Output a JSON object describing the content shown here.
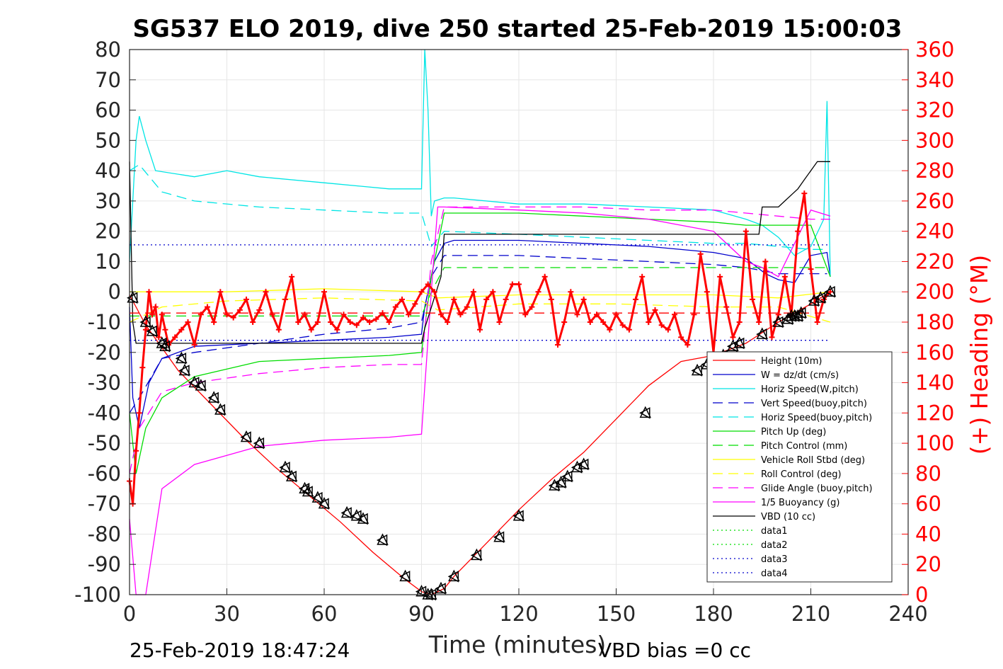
{
  "chart_data": {
    "type": "line",
    "title": "SG537 ELO 2019, dive 250 started 25-Feb-2019 15:00:03",
    "xlabel": "Time (minutes)",
    "ylabel_right": "(+) Heading (°M)",
    "xlim": [
      0,
      240
    ],
    "ylim": [
      -100,
      80
    ],
    "ylim_right": [
      0,
      360
    ],
    "x_ticks": [
      "0",
      "30",
      "60",
      "90",
      "120",
      "150",
      "180",
      "210",
      "240"
    ],
    "y_ticks": [
      "80",
      "70",
      "60",
      "50",
      "40",
      "30",
      "20",
      "10",
      "0",
      "-10",
      "-20",
      "-30",
      "-40",
      "-50",
      "-60",
      "-70",
      "-80",
      "-90",
      "-100"
    ],
    "y_ticks_right": [
      "360",
      "340",
      "320",
      "300",
      "280",
      "260",
      "240",
      "220",
      "200",
      "180",
      "160",
      "140",
      "120",
      "100",
      "80",
      "60",
      "40",
      "20",
      "0"
    ],
    "grid": true,
    "legend_position": "bottom-right",
    "footer_left": "25-Feb-2019 18:47:24",
    "footer_right": "VBD bias =0 cc",
    "series": [
      {
        "name": "Height (10m)",
        "color": "#ff0000",
        "style": "solid",
        "x": [
          0,
          5,
          15,
          25,
          35,
          45,
          55,
          65,
          75,
          85,
          90,
          93,
          97,
          100,
          110,
          120,
          130,
          140,
          150,
          160,
          170,
          180,
          190,
          200,
          210,
          216
        ],
        "y": [
          -1,
          -11,
          -26,
          -37,
          -48,
          -58,
          -67,
          -76,
          -86,
          -95,
          -99,
          -100,
          -98,
          -94,
          -83,
          -72,
          -62,
          -53,
          -42,
          -31,
          -23,
          -21,
          -17,
          -10,
          -4,
          0
        ]
      },
      {
        "name": "W = dz/dt (cm/s)",
        "color": "#0000cc",
        "style": "solid",
        "x": [
          0,
          1,
          3,
          6,
          10,
          20,
          40,
          60,
          80,
          90,
          91,
          94,
          97,
          100,
          120,
          140,
          160,
          180,
          190,
          196,
          200,
          205,
          210,
          215,
          216
        ],
        "y": [
          -5,
          -35,
          -45,
          -30,
          -22,
          -18,
          -17,
          -16,
          -15,
          -14,
          -5,
          10,
          16,
          17,
          17,
          16,
          15,
          13,
          11,
          6,
          4,
          3,
          12,
          13,
          5
        ]
      },
      {
        "name": "Horiz Speed(W,pitch)",
        "color": "#00e5e5",
        "style": "solid",
        "x": [
          0,
          2,
          3,
          5,
          8,
          20,
          30,
          40,
          60,
          80,
          90,
          91,
          92,
          93,
          94,
          97,
          100,
          120,
          140,
          160,
          180,
          190,
          195,
          200,
          205,
          210,
          214,
          215,
          216
        ],
        "y": [
          10,
          50,
          58,
          50,
          40,
          38,
          40,
          38,
          36,
          34,
          34,
          80,
          60,
          25,
          30,
          31,
          31,
          29,
          29,
          28,
          27,
          24,
          22,
          18,
          12,
          15,
          24,
          63,
          5
        ]
      },
      {
        "name": "Vert Speed(buoy,pitch)",
        "color": "#0000cc",
        "style": "dash",
        "x": [
          0,
          3,
          10,
          20,
          40,
          60,
          80,
          90,
          93,
          97,
          120,
          140,
          160,
          180,
          190,
          200,
          210,
          215
        ],
        "y": [
          -40,
          -35,
          -22,
          -20,
          -17,
          -14,
          -12,
          -10,
          5,
          12,
          12,
          11,
          10,
          9,
          8,
          6,
          6,
          6
        ]
      },
      {
        "name": "Horiz Speed(buoy,pitch)",
        "color": "#00e5e5",
        "style": "dash",
        "x": [
          0,
          3,
          10,
          20,
          40,
          60,
          80,
          90,
          93,
          97,
          120,
          140,
          160,
          180,
          190,
          200,
          210,
          215
        ],
        "y": [
          40,
          42,
          33,
          30,
          28,
          27,
          26,
          26,
          15,
          20,
          19,
          18,
          17,
          16,
          16,
          15,
          14,
          14
        ]
      },
      {
        "name": "Pitch Up (deg)",
        "color": "#00dd00",
        "style": "solid",
        "x": [
          0,
          2,
          5,
          10,
          20,
          40,
          60,
          80,
          90,
          93,
          97,
          120,
          140,
          160,
          180,
          190,
          200,
          210,
          216
        ],
        "y": [
          -40,
          -60,
          -45,
          -35,
          -28,
          -23,
          -22,
          -21,
          -20,
          5,
          26,
          26,
          25,
          24,
          23,
          22,
          22,
          22,
          5
        ]
      },
      {
        "name": "Pitch Control (mm)",
        "color": "#00dd00",
        "style": "dash",
        "x": [
          0,
          10,
          40,
          90,
          93,
          97,
          150,
          190,
          210,
          216
        ],
        "y": [
          -8,
          -8,
          -8,
          -8,
          0,
          8,
          8,
          8,
          8,
          8
        ]
      },
      {
        "name": "Vehicle Roll Stbd (deg)",
        "color": "#ffff00",
        "style": "solid",
        "x": [
          0,
          10,
          30,
          60,
          90,
          95,
          120,
          150,
          180,
          200,
          216
        ],
        "y": [
          0,
          0,
          0,
          1,
          0,
          -2,
          -1,
          -1,
          -1,
          -2,
          0
        ]
      },
      {
        "name": "Roll Control (deg)",
        "color": "#ffff00",
        "style": "dash",
        "x": [
          0,
          10,
          30,
          60,
          90,
          95,
          120,
          150,
          180,
          200,
          216
        ],
        "y": [
          -10,
          -5,
          -3,
          -2,
          -3,
          -6,
          -4,
          -4,
          -5,
          -5,
          -10
        ]
      },
      {
        "name": "Glide Angle (buoy,pitch)",
        "color": "#ff00ff",
        "style": "dash",
        "x": [
          0,
          3,
          10,
          20,
          40,
          60,
          80,
          90,
          93,
          97,
          120,
          140,
          160,
          180,
          190,
          200,
          210,
          216
        ],
        "y": [
          -60,
          -45,
          -33,
          -30,
          -27,
          -25,
          -24,
          -24,
          10,
          28,
          28,
          28,
          27,
          27,
          26,
          25,
          24,
          24
        ]
      },
      {
        "name": "1/5 Buoyancy (g)",
        "color": "#ff00ff",
        "style": "solid",
        "x": [
          0,
          2,
          5,
          10,
          20,
          30,
          40,
          60,
          80,
          90,
          93,
          95,
          97,
          120,
          140,
          160,
          180,
          185,
          190,
          195,
          200,
          210,
          216
        ],
        "y": [
          -75,
          -100,
          -100,
          -65,
          -57,
          -54,
          -51,
          -49,
          -48,
          -47,
          0,
          28,
          28,
          27,
          26,
          24,
          20,
          15,
          10,
          8,
          5,
          27,
          25
        ]
      },
      {
        "name": "VBD (10 cc)",
        "color": "#000000",
        "style": "solid",
        "x": [
          0,
          1,
          2,
          90,
          91,
          96,
          97,
          190,
          194,
          195,
          200,
          202,
          204,
          206,
          208,
          210,
          212,
          216
        ],
        "y": [
          43,
          -10,
          -17,
          -17,
          -12,
          5,
          19,
          19,
          19,
          28,
          28,
          30,
          32,
          34,
          37,
          40,
          43,
          43
        ]
      },
      {
        "name": "data1",
        "color": "#00dd00",
        "style": "dot",
        "x": [],
        "y": []
      },
      {
        "name": "data2",
        "color": "#00dd00",
        "style": "dot",
        "x": [],
        "y": []
      },
      {
        "name": "data3",
        "color": "#0000cc",
        "style": "dot",
        "x": [
          0,
          216
        ],
        "y": [
          15.5,
          15.5
        ]
      },
      {
        "name": "data4",
        "color": "#0000cc",
        "style": "dot",
        "x": [
          0,
          216
        ],
        "y": [
          -16,
          -16
        ]
      },
      {
        "name": "",
        "color": "#ff0000",
        "style": "dash",
        "x": [
          0,
          216
        ],
        "y": [
          -7,
          -7
        ]
      }
    ],
    "heading": {
      "color": "#ff0000",
      "axis": "right",
      "x": [
        0,
        1,
        2,
        3,
        4,
        5,
        6,
        7,
        8,
        9,
        10,
        11,
        12,
        14,
        16,
        18,
        20,
        22,
        24,
        26,
        28,
        30,
        32,
        34,
        36,
        38,
        40,
        42,
        44,
        46,
        48,
        50,
        52,
        54,
        56,
        58,
        60,
        62,
        64,
        66,
        68,
        70,
        72,
        74,
        76,
        78,
        80,
        82,
        84,
        86,
        88,
        90,
        92,
        94,
        96,
        98,
        100,
        102,
        104,
        106,
        108,
        110,
        112,
        114,
        116,
        118,
        120,
        122,
        124,
        126,
        128,
        130,
        132,
        134,
        136,
        138,
        140,
        142,
        144,
        146,
        148,
        150,
        152,
        154,
        156,
        158,
        160,
        162,
        164,
        166,
        168,
        170,
        172,
        174,
        176,
        178,
        180,
        182,
        184,
        186,
        188,
        190,
        192,
        194,
        196,
        198,
        200,
        202,
        204,
        206,
        208,
        210,
        212,
        214,
        216
      ],
      "y": [
        75,
        60,
        95,
        120,
        150,
        175,
        200,
        185,
        190,
        170,
        185,
        175,
        165,
        170,
        175,
        180,
        165,
        185,
        190,
        180,
        200,
        185,
        183,
        188,
        195,
        180,
        188,
        200,
        185,
        175,
        195,
        210,
        180,
        185,
        175,
        180,
        200,
        180,
        175,
        185,
        180,
        178,
        183,
        180,
        182,
        186,
        180,
        190,
        195,
        185,
        192,
        200,
        205,
        200,
        185,
        180,
        195,
        185,
        190,
        200,
        175,
        195,
        200,
        180,
        195,
        205,
        205,
        185,
        190,
        200,
        210,
        195,
        165,
        180,
        200,
        185,
        195,
        180,
        185,
        180,
        175,
        185,
        178,
        175,
        195,
        210,
        180,
        188,
        178,
        175,
        185,
        170,
        165,
        185,
        225,
        200,
        160,
        210,
        190,
        170,
        180,
        240,
        195,
        180,
        220,
        170,
        185,
        210,
        185,
        240,
        265,
        215,
        180,
        195,
        200
      ]
    },
    "markers": {
      "x": [
        1,
        5,
        7,
        10,
        11,
        16,
        17,
        20,
        22,
        26,
        28,
        36,
        40,
        48,
        50,
        54,
        55,
        58,
        60,
        67,
        70,
        72,
        78,
        85,
        90,
        92,
        93,
        96,
        100,
        107,
        114,
        120,
        131,
        133,
        135,
        138,
        140,
        159,
        175,
        178,
        183,
        186,
        188,
        195,
        200,
        203,
        204,
        205,
        206,
        207,
        211,
        213,
        216
      ],
      "y": [
        -2,
        -10,
        -13,
        -17,
        -18,
        -22,
        -26,
        -30,
        -31,
        -35,
        -39,
        -48,
        -50,
        -58,
        -61,
        -65,
        -66,
        -68,
        -70,
        -73,
        -74,
        -75,
        -82,
        -94,
        -99,
        -100,
        -100,
        -98,
        -94,
        -87,
        -81,
        -74,
        -64,
        -63,
        -61,
        -58,
        -57,
        -40,
        -26,
        -24,
        -21,
        -18,
        -17,
        -14,
        -10,
        -9,
        -8,
        -8,
        -8,
        -7,
        -3,
        -2,
        0
      ]
    }
  }
}
